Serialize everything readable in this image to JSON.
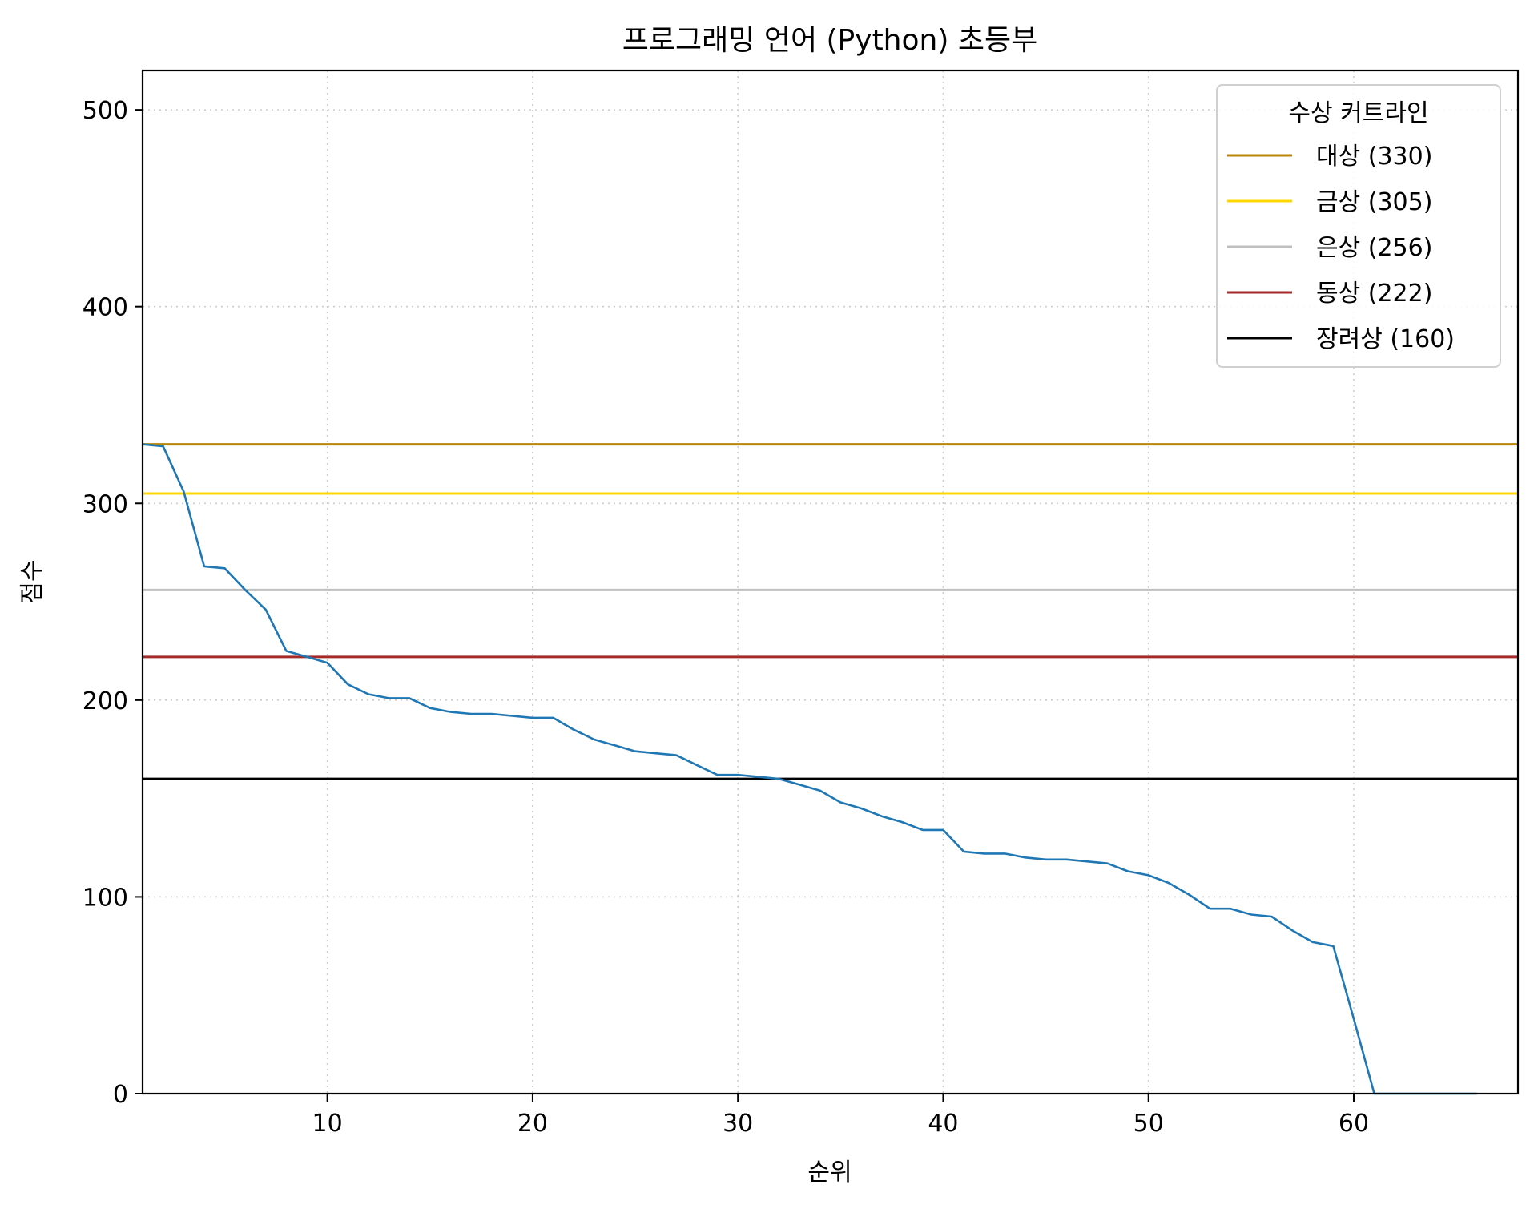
{
  "chart_data": {
    "type": "line",
    "title": "프로그래밍 언어 (Python) 초등부",
    "xlabel": "순위",
    "ylabel": "점수",
    "xlim": [
      1,
      68
    ],
    "ylim": [
      0,
      520
    ],
    "xticks": [
      10,
      20,
      30,
      40,
      50,
      60
    ],
    "yticks": [
      0,
      100,
      200,
      300,
      400,
      500
    ],
    "grid": true,
    "legend_position": "upper right",
    "series": [
      {
        "name": "점수",
        "color": "#1f77b4",
        "x": [
          1,
          2,
          3,
          4,
          5,
          6,
          7,
          8,
          9,
          10,
          11,
          12,
          13,
          14,
          15,
          16,
          17,
          18,
          19,
          20,
          21,
          22,
          23,
          24,
          25,
          26,
          27,
          28,
          29,
          30,
          31,
          32,
          33,
          34,
          35,
          36,
          37,
          38,
          39,
          40,
          41,
          42,
          43,
          44,
          45,
          46,
          47,
          48,
          49,
          50,
          51,
          52,
          53,
          54,
          55,
          56,
          57,
          58,
          59,
          60,
          61,
          62,
          63,
          64,
          65,
          66
        ],
        "values": [
          330,
          329,
          306,
          268,
          267,
          256,
          246,
          225,
          222,
          219,
          208,
          203,
          201,
          201,
          196,
          194,
          193,
          193,
          192,
          191,
          191,
          185,
          180,
          177,
          174,
          173,
          172,
          167,
          162,
          162,
          161,
          160,
          157,
          154,
          148,
          145,
          141,
          138,
          134,
          134,
          123,
          122,
          122,
          120,
          119,
          119,
          118,
          117,
          113,
          111,
          107,
          101,
          94,
          94,
          91,
          90,
          83,
          77,
          75,
          38,
          0,
          0,
          0,
          0,
          0,
          0
        ]
      }
    ],
    "reference_lines": [
      {
        "label": "대상 (330)",
        "value": 330,
        "color": "#B8860B"
      },
      {
        "label": "금상 (305)",
        "value": 305,
        "color": "#FFD700"
      },
      {
        "label": "은상 (256)",
        "value": 256,
        "color": "#C0C0C0"
      },
      {
        "label": "동상 (222)",
        "value": 222,
        "color": "#A52A2A"
      },
      {
        "label": "장려상 (160)",
        "value": 160,
        "color": "#000000"
      }
    ],
    "legend_title": "수상 커트라인"
  }
}
